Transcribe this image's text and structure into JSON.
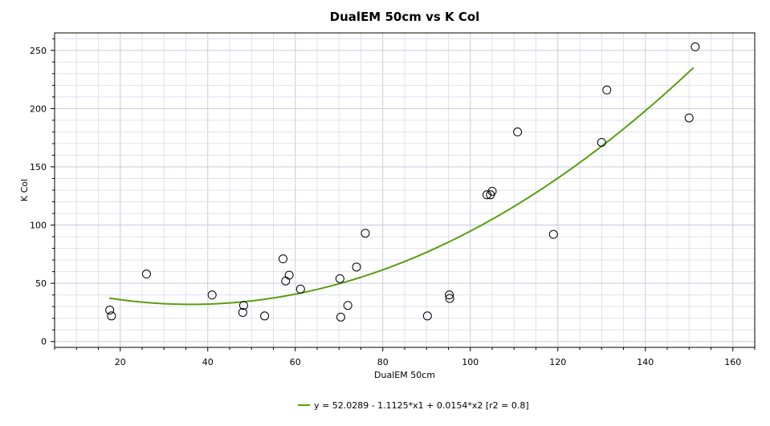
{
  "chart_data": {
    "type": "scatter",
    "title": "DualEM 50cm vs K Col",
    "xlabel": "DualEM 50cm",
    "ylabel": "K Col",
    "xlim": [
      5,
      165
    ],
    "ylim": [
      -5,
      265
    ],
    "xticks": [
      20,
      40,
      60,
      80,
      100,
      120,
      140,
      160
    ],
    "yticks": [
      0,
      50,
      100,
      150,
      200,
      250
    ],
    "grid": true,
    "colors": {
      "fit_line": "#5a9e0e",
      "points": "#000000",
      "grid_minor": "#e0e0f0",
      "grid_major": "#c8c8e0"
    },
    "points": [
      {
        "x": 17.6,
        "y": 27
      },
      {
        "x": 18.0,
        "y": 22
      },
      {
        "x": 26.0,
        "y": 58
      },
      {
        "x": 41.0,
        "y": 40
      },
      {
        "x": 48.0,
        "y": 25
      },
      {
        "x": 48.2,
        "y": 31
      },
      {
        "x": 53.0,
        "y": 22
      },
      {
        "x": 57.2,
        "y": 71
      },
      {
        "x": 57.8,
        "y": 52
      },
      {
        "x": 58.6,
        "y": 57
      },
      {
        "x": 61.2,
        "y": 45
      },
      {
        "x": 70.2,
        "y": 54
      },
      {
        "x": 70.4,
        "y": 21
      },
      {
        "x": 72.0,
        "y": 31
      },
      {
        "x": 74.0,
        "y": 64
      },
      {
        "x": 76.0,
        "y": 93
      },
      {
        "x": 90.2,
        "y": 22
      },
      {
        "x": 95.2,
        "y": 40
      },
      {
        "x": 95.3,
        "y": 37
      },
      {
        "x": 103.8,
        "y": 126
      },
      {
        "x": 104.6,
        "y": 126
      },
      {
        "x": 105.0,
        "y": 129
      },
      {
        "x": 110.8,
        "y": 180
      },
      {
        "x": 119.0,
        "y": 92
      },
      {
        "x": 130.0,
        "y": 171
      },
      {
        "x": 131.2,
        "y": 216
      },
      {
        "x": 150.0,
        "y": 192
      },
      {
        "x": 151.4,
        "y": 253
      }
    ],
    "fit": {
      "type": "polynomial",
      "coefficients": [
        52.0289,
        -1.1125,
        0.0154
      ],
      "x_range": [
        17.5,
        151
      ],
      "label": "y = 52.0289 - 1.1125*x1 + 0.0154*x2 [r2 = 0.8]"
    },
    "legend": {
      "position": "bottom-center",
      "entries": [
        "y = 52.0289 - 1.1125*x1 + 0.0154*x2 [r2 = 0.8]"
      ]
    }
  }
}
